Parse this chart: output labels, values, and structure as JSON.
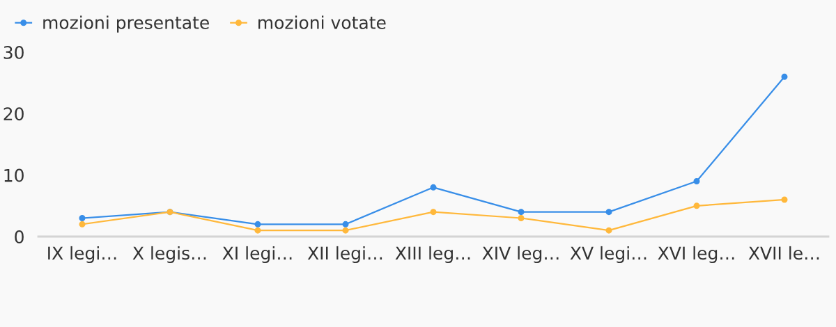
{
  "chart_data": {
    "type": "line",
    "categories": [
      "IX legi…",
      "X legis…",
      "XI legi…",
      "XII legi…",
      "XIII leg…",
      "XIV leg…",
      "XV legi…",
      "XVI leg…",
      "XVII le…"
    ],
    "series": [
      {
        "name": "mozioni presentate",
        "color": "#388ee8",
        "values": [
          3,
          4,
          2,
          2,
          8,
          4,
          4,
          9,
          26
        ]
      },
      {
        "name": "mozioni votate",
        "color": "#ffb83b",
        "values": [
          2,
          4,
          1,
          1,
          4,
          3,
          1,
          5,
          6
        ]
      }
    ],
    "ylim": [
      0,
      30
    ],
    "yticks": [
      0,
      10,
      20,
      30
    ],
    "grid": false,
    "legend": "top left",
    "marker": "circle",
    "line_style": "solid"
  }
}
